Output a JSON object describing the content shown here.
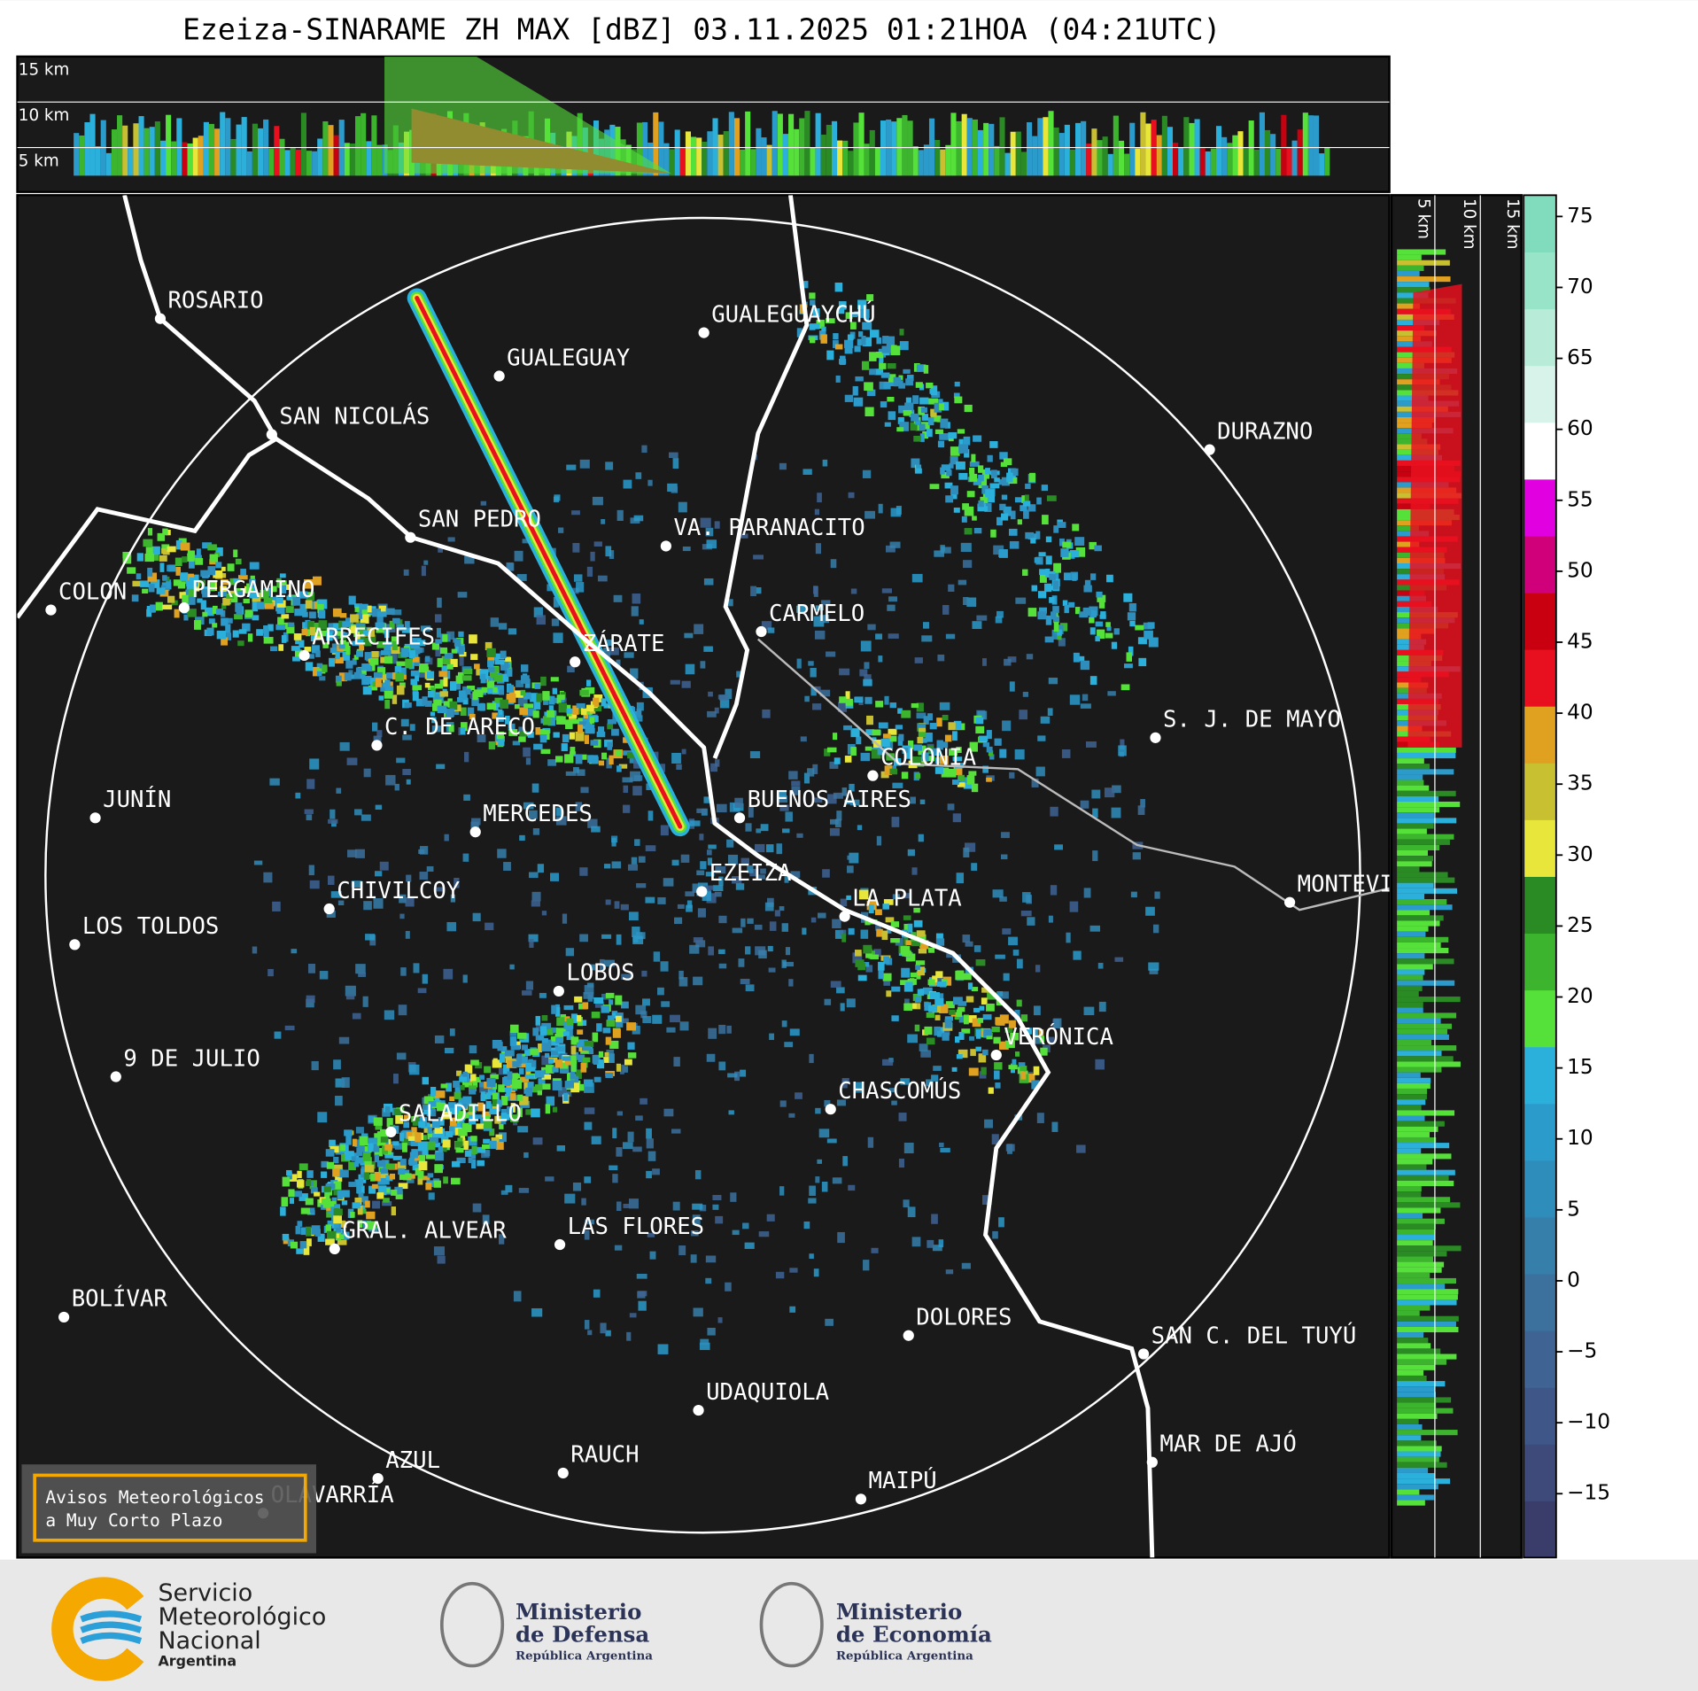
{
  "title": "Ezeiza-SINARAME ZH MAX [dBZ] 03.11.2025 01:21HOA (04:21UTC)",
  "profile_labels": [
    "15 km",
    "10 km",
    "5 km"
  ],
  "cities": [
    "ROSARIO",
    "GUALEGUAYCHÚ",
    "GUALEGUAY",
    "SAN NICOLÁS",
    "DURAZNO",
    "SAN PEDRO",
    "VA. PARANACITO",
    "COLON",
    "PERGAMINO",
    "CARMELO",
    "ARRECIFES",
    "ZÁRATE",
    "S. J. DE MAYO",
    "C. DE ARECO",
    "COLONIA",
    "BUENOS AIRES",
    "JUNÍN",
    "MERCEDES",
    "EZEIZA",
    "MONTEVIDEO",
    "CHIVILCOY",
    "LA PLATA",
    "LOS TOLDOS",
    "LOBOS",
    "VERÓNICA",
    "9 DE JULIO",
    "CHASCOMÚS",
    "SALADILLO",
    "GRAL. ALVEAR",
    "LAS FLORES",
    "BOLÍVAR",
    "DOLORES",
    "SAN C. DEL TUYÚ",
    "UDAQUIOLA",
    "MAR DE AJÓ",
    "RAUCH",
    "AZUL",
    "OLAVARRÍA",
    "MAIPÚ"
  ],
  "notice": [
    "Avisos Meteorológicos",
    "a Muy Corto Plazo"
  ],
  "colorbar": {
    "lim": [
      -19.5,
      76.5
    ],
    "ticks": [
      {
        "value": -15,
        "label": "−15"
      },
      {
        "value": -10,
        "label": "−10"
      },
      {
        "value": -5,
        "label": "−5"
      },
      0,
      5,
      10,
      15,
      20,
      25,
      30,
      35,
      40,
      45,
      50,
      55,
      60,
      65,
      70,
      75
    ],
    "colors": [
      "#3a3d6a",
      "#3e4a7a",
      "#3f5788",
      "#3f6494",
      "#3c719e",
      "#377fab",
      "#2f8dbb",
      "#2a9bcb",
      "#2bb0dc",
      "#55e03a",
      "#3cb42e",
      "#2a8a24",
      "#e8e63a",
      "#c8c030",
      "#e0a020",
      "#e8101e",
      "#c80010",
      "#d0007a",
      "#e000e0",
      "#ffffff",
      "#d8f4ea",
      "#b8ecd8",
      "#98e4c8",
      "#80dcbc"
    ]
  },
  "logos": {
    "smn": [
      "Servicio",
      "Meteorológico",
      "Nacional",
      "Argentina"
    ],
    "defensa": [
      "Ministerio",
      "de Defensa",
      "República Argentina"
    ],
    "economia": [
      "Ministerio",
      "de Economía",
      "República Argentina"
    ]
  }
}
